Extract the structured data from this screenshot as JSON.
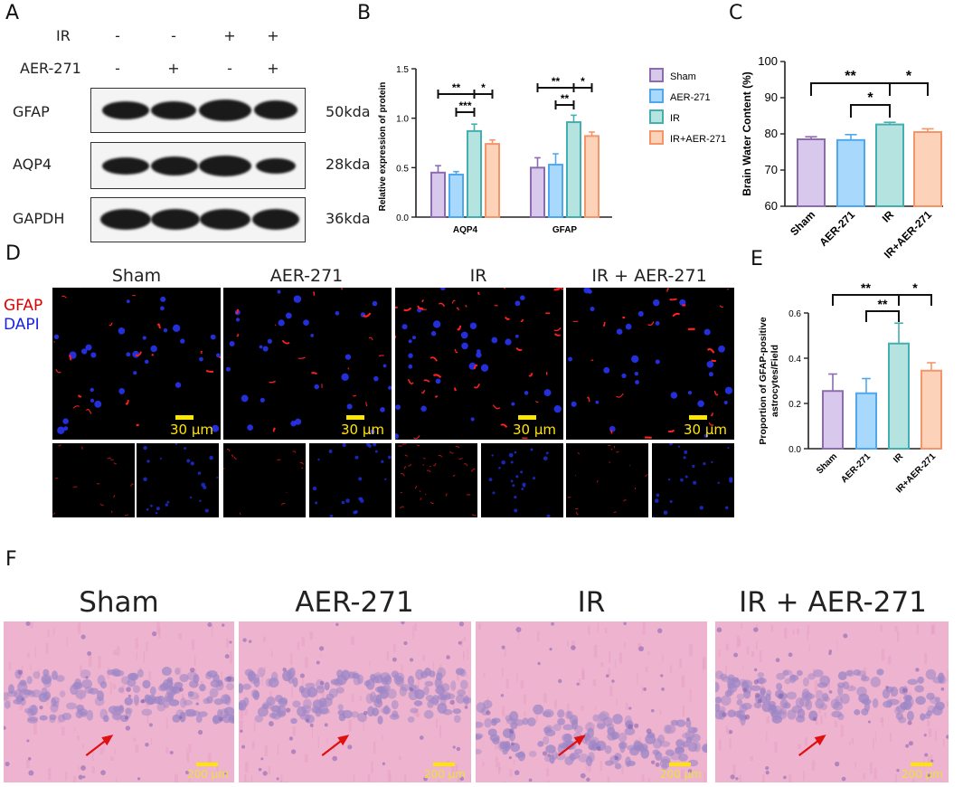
{
  "panels": {
    "A": "A",
    "B": "B",
    "C": "C",
    "D": "D",
    "E": "E",
    "F": "F"
  },
  "western_blot": {
    "treatment_rows": [
      {
        "label": "IR",
        "signs": [
          "-",
          "-",
          "+",
          "+"
        ]
      },
      {
        "label": "AER-271",
        "signs": [
          "-",
          "+",
          "-",
          "+"
        ]
      }
    ],
    "blots": [
      {
        "protein": "GFAP",
        "size": "50kda"
      },
      {
        "protein": "AQP4",
        "size": "28kda"
      },
      {
        "protein": "GAPDH",
        "size": "36kda"
      }
    ]
  },
  "colors": {
    "sham": "#8c6bb1",
    "aer": "#4ea8f0",
    "ir": "#45aeae",
    "ir_aer": "#f4956a",
    "sham_fill": "#d8c8ec",
    "aer_fill": "#a8d8fb",
    "ir_fill": "#b5e3e0",
    "ir_aer_fill": "#fcd2b8"
  },
  "chart_data": [
    {
      "panel": "B",
      "type": "bar",
      "categories": [
        "AQP4",
        "GFAP"
      ],
      "ylabel": "Relative expression of protein",
      "ylim": [
        0,
        1.5
      ],
      "yticks": [
        "0.0",
        "0.5",
        "1.0",
        "1.5"
      ],
      "legend": [
        "Sham",
        "AER-271",
        "IR",
        "IR+AER-271"
      ],
      "legend_position": "right",
      "series": [
        {
          "name": "Sham",
          "values": [
            0.45,
            0.5
          ],
          "errors": [
            0.07,
            0.1
          ]
        },
        {
          "name": "AER-271",
          "values": [
            0.43,
            0.53
          ],
          "errors": [
            0.03,
            0.11
          ]
        },
        {
          "name": "IR",
          "values": [
            0.87,
            0.96
          ],
          "errors": [
            0.07,
            0.07
          ]
        },
        {
          "name": "IR+AER-271",
          "values": [
            0.74,
            0.82
          ],
          "errors": [
            0.04,
            0.04
          ]
        }
      ],
      "significance": [
        {
          "group": "AQP4",
          "from": "Sham",
          "to": "IR",
          "label": "**"
        },
        {
          "group": "AQP4",
          "from": "AER-271",
          "to": "IR",
          "label": "***"
        },
        {
          "group": "AQP4",
          "from": "IR",
          "to": "IR+AER-271",
          "label": "*"
        },
        {
          "group": "GFAP",
          "from": "Sham",
          "to": "IR",
          "label": "**"
        },
        {
          "group": "GFAP",
          "from": "AER-271",
          "to": "IR",
          "label": "**"
        },
        {
          "group": "GFAP",
          "from": "IR",
          "to": "IR+AER-271",
          "label": "*"
        }
      ]
    },
    {
      "panel": "C",
      "type": "bar",
      "categories": [
        "Sham",
        "AER-271",
        "IR",
        "IR+AER-271"
      ],
      "ylabel": "Brain Water Content (%)",
      "ylim": [
        60,
        100
      ],
      "yticks": [
        "60",
        "70",
        "80",
        "90",
        "100"
      ],
      "values": [
        78.5,
        78.3,
        82.6,
        80.5
      ],
      "errors": [
        0.7,
        1.5,
        0.6,
        0.9
      ],
      "significance": [
        {
          "from": "Sham",
          "to": "IR",
          "label": "**"
        },
        {
          "from": "AER-271",
          "to": "IR",
          "label": "*"
        },
        {
          "from": "IR",
          "to": "IR+AER-271",
          "label": "*"
        }
      ]
    },
    {
      "panel": "E",
      "type": "bar",
      "categories": [
        "Sham",
        "AER-271",
        "IR",
        "IR+AER-271"
      ],
      "ylabel": [
        "Proportion of GFAP-positive",
        "astrocytes/Field"
      ],
      "ylim": [
        0,
        0.6
      ],
      "yticks": [
        "0.0",
        "0.2",
        "0.4",
        "0.6"
      ],
      "values": [
        0.255,
        0.245,
        0.465,
        0.345
      ],
      "errors": [
        0.075,
        0.065,
        0.09,
        0.035
      ],
      "significance": [
        {
          "from": "Sham",
          "to": "IR",
          "label": "**"
        },
        {
          "from": "AER-271",
          "to": "IR",
          "label": "**"
        },
        {
          "from": "IR",
          "to": "IR+AER-271",
          "label": "*"
        }
      ]
    }
  ],
  "immunofluorescence": {
    "stain_labels": {
      "gfap": "GFAP",
      "dapi": "DAPI"
    },
    "conditions": [
      "Sham",
      "AER-271",
      "IR",
      "IR + AER-271"
    ],
    "scale_label": "30 μm"
  },
  "he_staining": {
    "conditions": [
      "Sham",
      "AER-271",
      "IR",
      "IR + AER-271"
    ],
    "scale_label": "200 μm"
  }
}
